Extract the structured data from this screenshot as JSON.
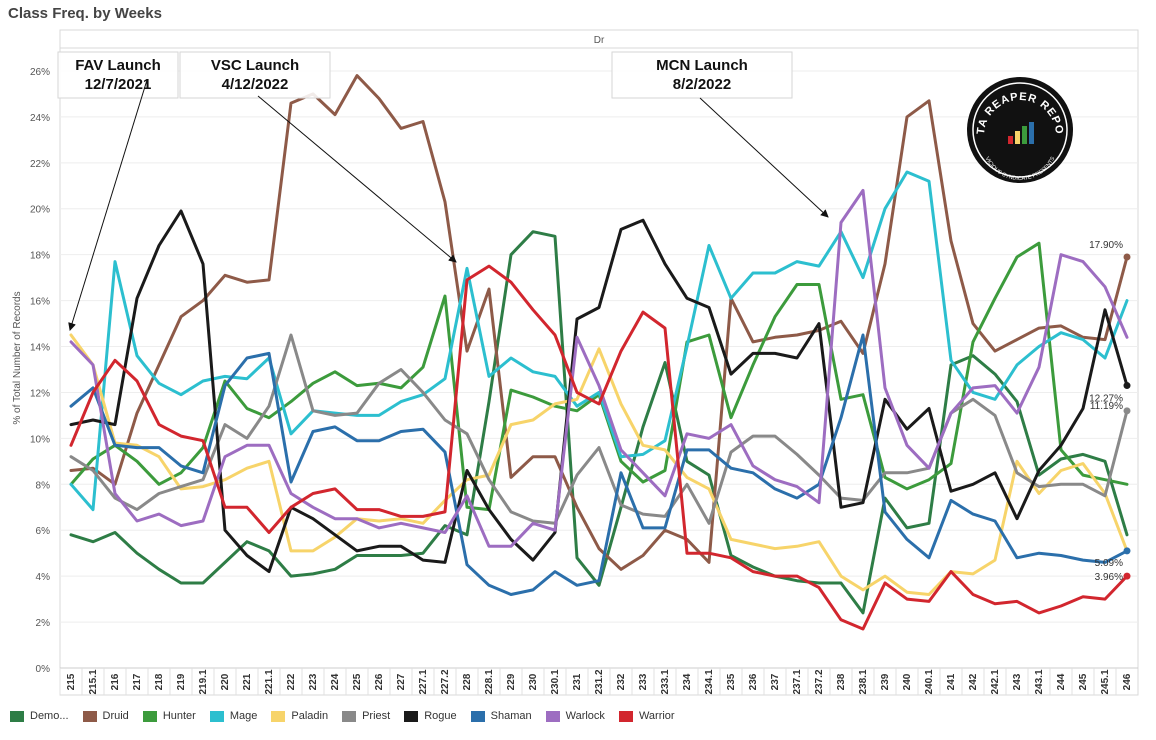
{
  "page_title": "Class Freq. by Weeks",
  "chart_data": {
    "type": "line",
    "title": "Class Freq. by Weeks",
    "column_header": "Dr",
    "ylabel": "% of Total Number of Records",
    "ylim": [
      0,
      27
    ],
    "y_ticks": [
      "0%",
      "2%",
      "4%",
      "6%",
      "8%",
      "10%",
      "12%",
      "14%",
      "16%",
      "18%",
      "20%",
      "22%",
      "24%",
      "26%"
    ],
    "grid": true,
    "legend_position": "bottom",
    "categories": [
      "215",
      "215.1",
      "216",
      "217",
      "218",
      "219",
      "219.1",
      "220",
      "221",
      "221.1",
      "222",
      "223",
      "224",
      "225",
      "226",
      "227",
      "227.1",
      "227.2",
      "228",
      "228.1",
      "229",
      "230",
      "230.1",
      "231",
      "231.2",
      "232",
      "233",
      "233.1",
      "234",
      "234.1",
      "235",
      "236",
      "237",
      "237.1",
      "237.2",
      "238",
      "238.1",
      "239",
      "240",
      "240.1",
      "241",
      "242",
      "242.1",
      "243",
      "243.1",
      "244",
      "245",
      "245.1",
      "246"
    ],
    "series": [
      {
        "name": "Demo...",
        "color": "#2e7d46",
        "values": [
          5.8,
          5.5,
          5.9,
          5.0,
          4.3,
          3.7,
          3.7,
          4.6,
          5.5,
          5.1,
          4.0,
          4.1,
          4.3,
          4.9,
          4.9,
          4.9,
          5.0,
          6.2,
          5.8,
          11.6,
          18.0,
          19.0,
          18.8,
          4.8,
          3.6,
          7.0,
          10.5,
          13.3,
          9.0,
          8.4,
          4.9,
          4.4,
          4.0,
          3.8,
          3.7,
          3.7,
          2.4,
          7.4,
          6.1,
          6.3,
          13.2,
          13.6,
          12.8,
          11.6,
          8.4,
          9.1,
          9.3,
          9.0,
          5.8
        ]
      },
      {
        "name": "Druid",
        "color": "#8e5a48",
        "values": [
          8.6,
          8.7,
          8.0,
          11.1,
          13.2,
          15.3,
          16.0,
          17.1,
          16.8,
          16.9,
          24.6,
          25.0,
          24.1,
          25.8,
          24.8,
          23.5,
          23.8,
          20.3,
          13.8,
          16.5,
          8.3,
          9.2,
          9.2,
          7.0,
          5.2,
          4.3,
          4.9,
          6.0,
          5.6,
          4.6,
          16.1,
          14.2,
          14.4,
          14.5,
          14.7,
          15.1,
          13.7,
          17.6,
          24.0,
          24.7,
          18.6,
          15.0,
          13.8,
          14.3,
          14.8,
          14.9,
          14.4,
          14.3,
          17.9
        ]
      },
      {
        "name": "Hunter",
        "color": "#3c9b3c",
        "values": [
          8.0,
          9.1,
          9.7,
          9.0,
          8.0,
          8.5,
          9.6,
          12.5,
          11.3,
          10.9,
          11.6,
          12.4,
          12.9,
          12.3,
          12.4,
          12.2,
          13.1,
          16.2,
          7.0,
          6.9,
          12.1,
          11.8,
          11.4,
          11.2,
          11.9,
          9.0,
          8.1,
          8.6,
          14.2,
          14.5,
          10.9,
          13.2,
          15.3,
          16.7,
          16.7,
          11.7,
          11.9,
          8.3,
          7.8,
          8.2,
          8.9,
          14.2,
          16.1,
          17.9,
          18.5,
          9.5,
          8.4,
          8.2,
          8.0
        ]
      },
      {
        "name": "Mage",
        "color": "#2cbfcf",
        "values": [
          8.0,
          6.9,
          17.7,
          13.6,
          12.4,
          11.9,
          12.5,
          12.7,
          12.6,
          13.5,
          10.2,
          11.2,
          11.1,
          11.0,
          11.0,
          11.6,
          11.9,
          12.6,
          17.4,
          12.7,
          13.5,
          12.9,
          12.7,
          11.4,
          12.0,
          9.2,
          9.3,
          9.9,
          14.0,
          18.4,
          16.1,
          17.2,
          17.2,
          17.7,
          17.5,
          19.0,
          17.0,
          20.0,
          21.6,
          21.2,
          13.4,
          12.0,
          11.7,
          13.2,
          14.0,
          14.6,
          14.3,
          13.5,
          16.0
        ]
      },
      {
        "name": "Paladin",
        "color": "#f7d46a",
        "values": [
          14.5,
          13.2,
          9.8,
          9.7,
          9.2,
          7.8,
          7.9,
          8.2,
          8.7,
          9.0,
          5.1,
          5.1,
          5.7,
          6.5,
          6.4,
          6.5,
          6.3,
          7.3,
          8.2,
          8.4,
          10.6,
          10.8,
          11.5,
          11.7,
          13.9,
          11.5,
          9.7,
          9.5,
          8.3,
          7.8,
          5.6,
          5.4,
          5.2,
          5.3,
          5.5,
          4.0,
          3.4,
          4.0,
          3.3,
          3.2,
          4.2,
          4.1,
          4.7,
          9.0,
          7.6,
          8.6,
          8.9,
          7.6,
          5.1
        ]
      },
      {
        "name": "Priest",
        "color": "#898989",
        "values": [
          9.2,
          8.6,
          7.4,
          6.9,
          7.6,
          7.9,
          8.2,
          10.6,
          10.0,
          11.4,
          14.5,
          11.2,
          11.0,
          11.1,
          12.4,
          13.0,
          12.0,
          10.8,
          10.2,
          8.2,
          6.8,
          6.4,
          6.3,
          8.4,
          9.6,
          7.1,
          6.7,
          6.6,
          8.0,
          6.3,
          9.4,
          10.1,
          10.1,
          9.3,
          8.4,
          7.4,
          7.3,
          8.5,
          8.5,
          8.7,
          11.1,
          11.7,
          11.0,
          8.5,
          7.9,
          8.0,
          8.0,
          7.5,
          11.2
        ]
      },
      {
        "name": "Rogue",
        "color": "#1a1a1a",
        "values": [
          10.6,
          10.8,
          10.6,
          16.1,
          18.4,
          19.9,
          17.6,
          6.0,
          4.9,
          4.2,
          7.0,
          6.5,
          5.8,
          5.1,
          5.3,
          5.3,
          4.7,
          4.6,
          8.6,
          6.9,
          5.6,
          4.7,
          5.9,
          15.2,
          15.7,
          19.1,
          19.5,
          17.6,
          16.1,
          15.7,
          12.8,
          13.7,
          13.7,
          13.5,
          15.0,
          7.0,
          7.2,
          11.7,
          10.4,
          11.3,
          7.7,
          8.0,
          8.5,
          6.5,
          8.6,
          9.7,
          11.3,
          15.6,
          12.3
        ]
      },
      {
        "name": "Shaman",
        "color": "#2b6fab",
        "values": [
          11.4,
          12.2,
          9.7,
          9.6,
          9.6,
          8.8,
          8.5,
          12.3,
          13.5,
          13.7,
          8.1,
          10.3,
          10.5,
          9.9,
          9.9,
          10.3,
          10.4,
          9.4,
          4.5,
          3.6,
          3.2,
          3.4,
          4.2,
          3.6,
          3.8,
          8.5,
          6.1,
          6.1,
          9.5,
          9.5,
          8.7,
          8.5,
          7.8,
          7.4,
          8.0,
          10.9,
          14.5,
          6.8,
          5.6,
          4.8,
          7.3,
          6.7,
          6.4,
          4.8,
          5.0,
          4.9,
          4.7,
          4.6,
          5.1
        ]
      },
      {
        "name": "Warlock",
        "color": "#9d6dc1",
        "values": [
          14.2,
          13.2,
          7.6,
          6.4,
          6.7,
          6.2,
          6.4,
          9.2,
          9.7,
          9.7,
          7.6,
          7.0,
          6.5,
          6.5,
          6.1,
          6.3,
          6.1,
          5.9,
          7.5,
          5.3,
          5.3,
          6.3,
          6.0,
          14.4,
          12.3,
          9.5,
          8.5,
          7.5,
          10.2,
          10.0,
          10.6,
          8.8,
          8.2,
          7.9,
          7.2,
          19.4,
          20.8,
          12.2,
          9.7,
          8.7,
          11.1,
          12.2,
          12.3,
          11.1,
          13.1,
          18.0,
          17.7,
          16.6,
          14.4
        ]
      },
      {
        "name": "Warrior",
        "color": "#d2262e",
        "values": [
          9.7,
          12.0,
          13.4,
          12.5,
          10.6,
          10.1,
          9.9,
          7.0,
          7.0,
          5.9,
          7.0,
          7.6,
          7.8,
          6.9,
          6.9,
          6.6,
          6.6,
          6.8,
          16.9,
          17.5,
          16.8,
          15.6,
          14.5,
          12.0,
          11.5,
          13.8,
          15.5,
          14.8,
          5.0,
          5.0,
          4.8,
          4.2,
          4.0,
          4.0,
          3.5,
          2.1,
          1.7,
          3.7,
          3.0,
          2.9,
          4.2,
          3.2,
          2.8,
          2.9,
          2.4,
          2.7,
          3.1,
          3.0,
          4.0
        ]
      }
    ],
    "end_labels": [
      {
        "series": "Druid",
        "text": "17.90%"
      },
      {
        "series": "Rogue",
        "text": "12.27%"
      },
      {
        "series": "Priest",
        "text": "11.19%"
      },
      {
        "series": "Shaman",
        "text": "5.09%"
      },
      {
        "series": "Warrior",
        "text": "3.96%"
      }
    ],
    "annotations": [
      {
        "id": "fav",
        "line1": "FAV Launch",
        "line2": "12/7/2021",
        "target": "215"
      },
      {
        "id": "vsc",
        "line1": "VSC Launch",
        "line2": "4/12/2022",
        "target": "228"
      },
      {
        "id": "mcn",
        "line1": "MCN Launch",
        "line2": "8/2/2022",
        "target": "237.2"
      }
    ],
    "logo": {
      "text": "DATA REAPER REPORT",
      "subtext": "VICIOUS SYNDICATE PRESENTS"
    }
  }
}
